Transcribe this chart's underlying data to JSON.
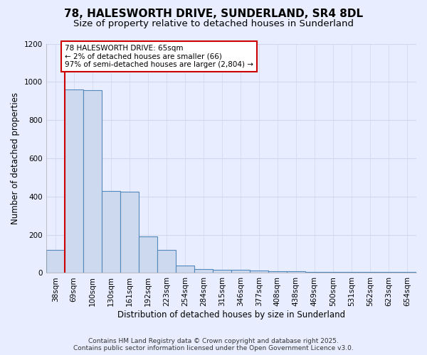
{
  "title_line1": "78, HALESWORTH DRIVE, SUNDERLAND, SR4 8DL",
  "title_line2": "Size of property relative to detached houses in Sunderland",
  "xlabel": "Distribution of detached houses by size in Sunderland",
  "ylabel": "Number of detached properties",
  "categories": [
    "38sqm",
    "69sqm",
    "100sqm",
    "130sqm",
    "161sqm",
    "192sqm",
    "223sqm",
    "254sqm",
    "284sqm",
    "315sqm",
    "346sqm",
    "377sqm",
    "408sqm",
    "438sqm",
    "469sqm",
    "500sqm",
    "531sqm",
    "562sqm",
    "623sqm",
    "654sqm"
  ],
  "values": [
    120,
    960,
    955,
    430,
    425,
    190,
    120,
    40,
    20,
    15,
    15,
    12,
    10,
    8,
    5,
    5,
    5,
    5,
    5,
    5
  ],
  "bar_color": "#ccd9ee",
  "bar_edge_color": "#5588bb",
  "bar_linewidth": 0.8,
  "marker_color": "#cc0000",
  "annotation_text": "78 HALESWORTH DRIVE: 65sqm\n← 2% of detached houses are smaller (66)\n97% of semi-detached houses are larger (2,804) →",
  "annotation_box_color": "#ffffff",
  "annotation_box_edge": "#cc0000",
  "ylim": [
    0,
    1200
  ],
  "yticks": [
    0,
    200,
    400,
    600,
    800,
    1000,
    1200
  ],
  "background_color": "#e8eeff",
  "grid_color": "#d0d8f0",
  "footer_line1": "Contains HM Land Registry data © Crown copyright and database right 2025.",
  "footer_line2": "Contains public sector information licensed under the Open Government Licence v3.0.",
  "title_fontsize": 11,
  "subtitle_fontsize": 9.5,
  "axis_label_fontsize": 8.5,
  "tick_fontsize": 7.5,
  "annotation_fontsize": 7.5,
  "footer_fontsize": 6.5
}
